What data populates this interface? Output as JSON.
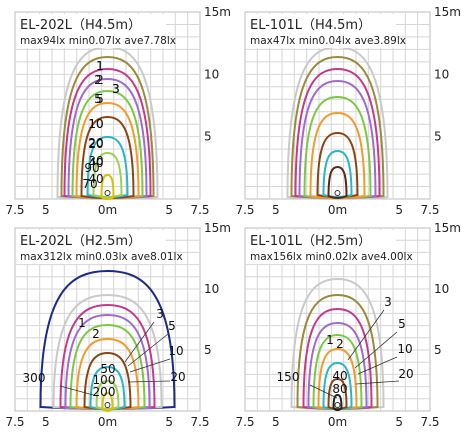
{
  "panels": [
    {
      "id": "p1",
      "title": "EL-202L（H4.5m）",
      "stats": "max94lx min0.07lx ave7.78lx",
      "x_ticks": [
        "7.5",
        "5",
        "0m",
        "5",
        "7.5"
      ],
      "y_ticks": [
        "15m",
        "10",
        "5"
      ],
      "contour_labels": [
        "1",
        "2",
        "3",
        "5",
        "10",
        "20",
        "40",
        "70",
        "90"
      ],
      "contours": [
        {
          "level": "0.5",
          "color": "#c9c9c9"
        },
        {
          "level": "1",
          "color": "#9a8a3a"
        },
        {
          "level": "2",
          "color": "#c43a8a"
        },
        {
          "level": "3",
          "color": "#a06ad0"
        },
        {
          "level": "5",
          "color": "#7cc843"
        },
        {
          "level": "10",
          "color": "#f39a2b"
        },
        {
          "level": "20",
          "color": "#8b4513"
        },
        {
          "level": "40",
          "color": "#2bb5c8"
        },
        {
          "level": "70",
          "color": "#9fce55"
        },
        {
          "level": "90",
          "color": "#d9c200"
        }
      ]
    },
    {
      "id": "p2",
      "title": "EL-101L（H4.5m）",
      "stats": "max47lx min0.04lx ave3.89lx",
      "x_ticks": [
        "7.5",
        "5",
        "0m",
        "5",
        "7.5"
      ],
      "y_ticks": [
        "15m",
        "10",
        "5"
      ],
      "contour_labels": [
        "1",
        "2",
        "3",
        "5",
        "10",
        "20",
        "30",
        "40"
      ],
      "contours": [
        {
          "level": "0.5",
          "color": "#c9c9c9"
        },
        {
          "level": "1",
          "color": "#9a8a3a"
        },
        {
          "level": "2",
          "color": "#c43a8a"
        },
        {
          "level": "3",
          "color": "#a06ad0"
        },
        {
          "level": "5",
          "color": "#7cc843"
        },
        {
          "level": "10",
          "color": "#f39a2b"
        },
        {
          "level": "20",
          "color": "#8b4513"
        },
        {
          "level": "30",
          "color": "#2bb5c8"
        },
        {
          "level": "40",
          "color": "#5a2a10"
        }
      ]
    },
    {
      "id": "p3",
      "title": "EL-202L（H2.5m）",
      "stats": "max312lx min0.03lx ave8.01lx",
      "x_ticks": [
        "7.5",
        "5",
        "0m",
        "5",
        "7.5"
      ],
      "y_ticks": [
        "15m",
        "10",
        "5"
      ],
      "contour_labels": [
        "1",
        "3",
        "2",
        "5",
        "10",
        "50",
        "20",
        "300",
        "100",
        "200"
      ],
      "contours": [
        {
          "level": "1",
          "color": "#1c2a8a"
        },
        {
          "level": "2",
          "color": "#c9c9c9"
        },
        {
          "level": "3",
          "color": "#c43a8a"
        },
        {
          "level": "5",
          "color": "#a06ad0"
        },
        {
          "level": "10",
          "color": "#7cc843"
        },
        {
          "level": "20",
          "color": "#f39a2b"
        },
        {
          "level": "50",
          "color": "#8b4513"
        },
        {
          "level": "100",
          "color": "#2bb5c8"
        },
        {
          "level": "200",
          "color": "#9fce55"
        },
        {
          "level": "300",
          "color": "#d9c200"
        }
      ]
    },
    {
      "id": "p4",
      "title": "EL-101L（H2.5m）",
      "stats": "max156lx min0.02lx ave4.00lx",
      "x_ticks": [
        "7.5",
        "5",
        "0m",
        "5",
        "7.5"
      ],
      "y_ticks": [
        "15m",
        "10",
        "5"
      ],
      "contour_labels": [
        "3",
        "1",
        "2",
        "5",
        "10",
        "20",
        "40",
        "150",
        "80"
      ],
      "contours": [
        {
          "level": "1",
          "color": "#c9c9c9"
        },
        {
          "level": "2",
          "color": "#9a8a3a"
        },
        {
          "level": "3",
          "color": "#c43a8a"
        },
        {
          "level": "5",
          "color": "#a06ad0"
        },
        {
          "level": "10",
          "color": "#7cc843"
        },
        {
          "level": "20",
          "color": "#f39a2b"
        },
        {
          "level": "40",
          "color": "#2bb5c8"
        },
        {
          "level": "80",
          "color": "#8b4513"
        },
        {
          "level": "150",
          "color": "#222222"
        }
      ]
    }
  ]
}
